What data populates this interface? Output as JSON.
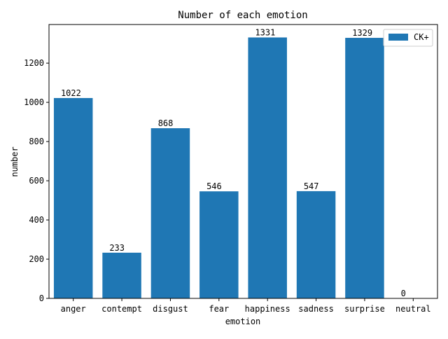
{
  "chart_data": {
    "type": "bar",
    "title": "Number of each emotion",
    "xlabel": "emotion",
    "ylabel": "number",
    "categories": [
      "anger",
      "contempt",
      "disgust",
      "fear",
      "happiness",
      "sadness",
      "surprise",
      "neutral"
    ],
    "series": [
      {
        "name": "CK+",
        "color": "#1f77b4",
        "values": [
          1022,
          233,
          868,
          546,
          1331,
          547,
          1329,
          0
        ]
      }
    ],
    "ylim": [
      0,
      1397
    ],
    "yticks": [
      0,
      200,
      400,
      600,
      800,
      1000,
      1200
    ],
    "grid": false,
    "legend_position": "top-right",
    "show_data_labels": true
  }
}
